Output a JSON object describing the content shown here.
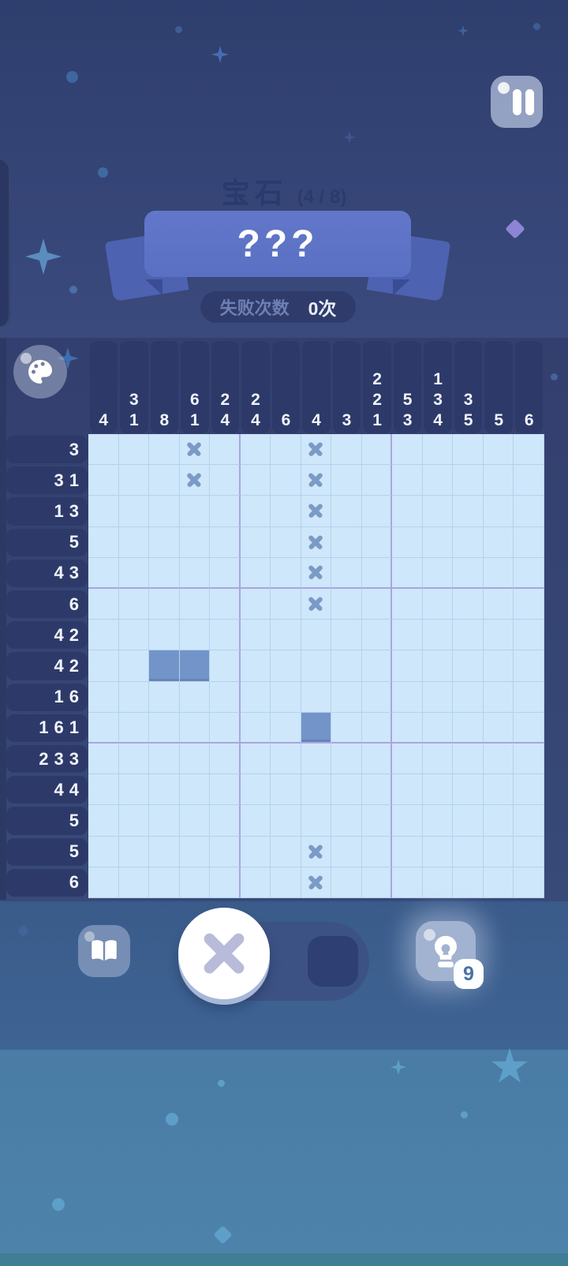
{
  "header": {
    "category": "宝石",
    "progress": "(4 / 8)",
    "puzzle_name": "???",
    "fail_label": "失败次数",
    "fail_count": "0次"
  },
  "board": {
    "size": 15,
    "col_clues": [
      [
        4
      ],
      [
        3,
        1
      ],
      [
        8
      ],
      [
        6,
        1
      ],
      [
        2,
        4
      ],
      [
        2,
        4
      ],
      [
        6
      ],
      [
        4
      ],
      [
        3
      ],
      [
        2,
        2,
        1
      ],
      [
        5,
        3
      ],
      [
        1,
        3,
        4
      ],
      [
        3,
        5
      ],
      [
        5
      ],
      [
        6
      ]
    ],
    "row_clues": [
      [
        3
      ],
      [
        3,
        1
      ],
      [
        1,
        3
      ],
      [
        5
      ],
      [
        4,
        3
      ],
      [
        6
      ],
      [
        4,
        2
      ],
      [
        4,
        2
      ],
      [
        1,
        6
      ],
      [
        1,
        6,
        1
      ],
      [
        2,
        3,
        3
      ],
      [
        4,
        4
      ],
      [
        5
      ],
      [
        5
      ],
      [
        6
      ]
    ],
    "cells": [
      "...x...x.......",
      "...x...x.......",
      ".......x.......",
      ".......x.......",
      ".......x.......",
      ".......x.......",
      "...............",
      "..##...........",
      "...............",
      ".......#.......",
      "...............",
      "...............",
      "...............",
      ".......x.......",
      ".......x......."
    ]
  },
  "toolbar": {
    "selected_mode": "x",
    "hint_count": "9"
  },
  "colors": {
    "cell_filled": "#7394c8",
    "grid_bg": "#cee7fa",
    "grid_line": "#b3d2ee",
    "grid_accent_line": "#aca3e2",
    "clue_pill": "#2d3a69",
    "ribbon": "#5c71c4",
    "x_mark": "#7b9ac5"
  }
}
